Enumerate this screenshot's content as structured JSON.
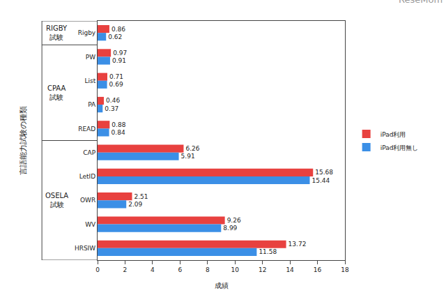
{
  "chart_data": {
    "type": "bar",
    "orientation": "horizontal",
    "y_label": "言語能力試験の種類",
    "x_label": "成績",
    "categories": [
      "Rigby",
      "PW",
      "List",
      "PA",
      "READ",
      "CAP",
      "LetID",
      "OWR",
      "WV",
      "HRSIW"
    ],
    "category_groups": [
      {
        "label": "RIGBY 試験",
        "categories": [
          "Rigby"
        ]
      },
      {
        "label": "CPAA 試験",
        "categories": [
          "PW",
          "List",
          "PA",
          "READ"
        ]
      },
      {
        "label": "OSELA 試験",
        "categories": [
          "CAP",
          "LetID",
          "OWR",
          "WV",
          "HRSIW"
        ]
      }
    ],
    "series": [
      {
        "name": "iPad利用",
        "color": "#e8413f",
        "values": [
          0.86,
          0.97,
          0.71,
          0.46,
          0.88,
          6.26,
          15.68,
          2.51,
          9.26,
          13.72
        ]
      },
      {
        "name": "iPad利用無し",
        "color": "#3b8fe6",
        "values": [
          0.62,
          0.91,
          0.69,
          0.37,
          0.84,
          5.91,
          15.44,
          2.09,
          8.99,
          11.58
        ]
      }
    ],
    "xlim": [
      0,
      18
    ],
    "xticks": [
      0,
      2,
      4,
      6,
      8,
      10,
      12,
      14,
      16,
      18
    ],
    "grid": false,
    "legend": "right",
    "data_labels": true,
    "annotations": [
      "ReseMom"
    ]
  }
}
